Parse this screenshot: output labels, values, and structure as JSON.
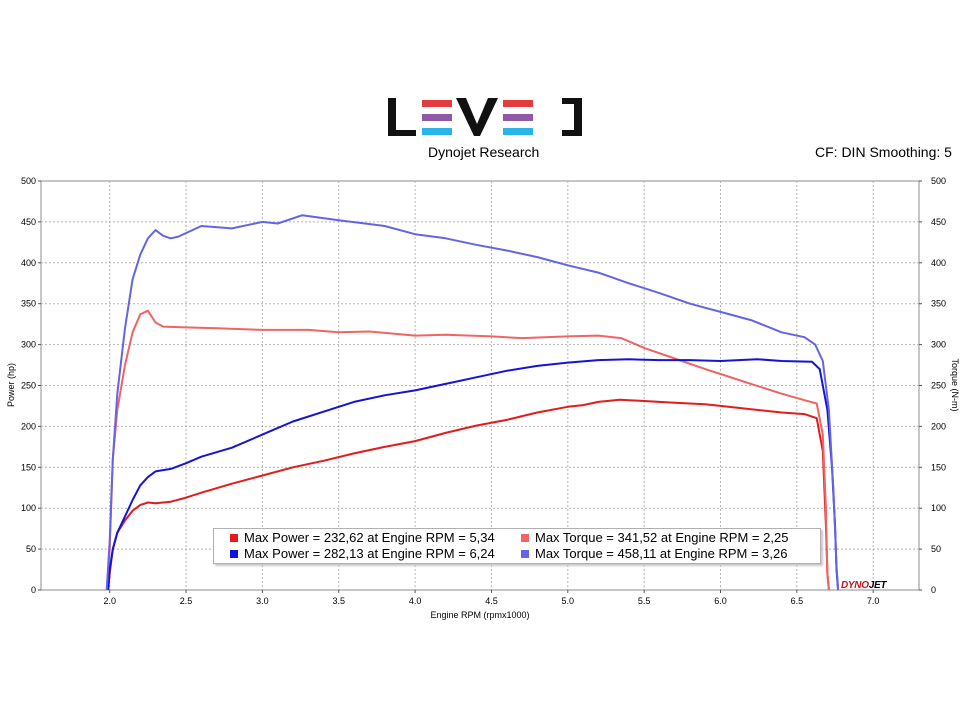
{
  "header": {
    "subtitle": "Dynojet Research",
    "settings": "CF: DIN Smoothing: 5",
    "logo_text": "LEVEL",
    "brand_mark": "DYNOJET"
  },
  "colors": {
    "power_stock": "#e31b1b",
    "torque_stock": "#f06464",
    "power_tuned": "#1414d8",
    "torque_tuned": "#6464e6",
    "logo_purple": "#8e5aa8",
    "logo_cyan": "#2ab4e8",
    "logo_red": "#e23c3c"
  },
  "legend": [
    {
      "label": "Max Power = 232,62 at Engine RPM = 5,34",
      "color": "#e31b1b"
    },
    {
      "label": "Max Torque = 341,52 at Engine RPM = 2,25",
      "color": "#f06464"
    },
    {
      "label": "Max Power = 282,13 at Engine RPM = 6,24",
      "color": "#1414d8"
    },
    {
      "label": "Max Torque = 458,11 at Engine RPM = 3,26",
      "color": "#6464e6"
    }
  ],
  "chart_data": {
    "type": "line",
    "xlabel": "Engine RPM (rpmx1000)",
    "ylabel": "Power (hp)",
    "y2label": "Torque (N-m)",
    "xlim": [
      1.55,
      7.3
    ],
    "ylim": [
      0,
      500
    ],
    "y2lim": [
      0,
      500
    ],
    "xticks": [
      "2.0",
      "2.5",
      "3.0",
      "3.5",
      "4.0",
      "4.5",
      "5.0",
      "5.5",
      "6.0",
      "6.5",
      "7.0"
    ],
    "yticks": [
      "0",
      "50",
      "100",
      "150",
      "200",
      "250",
      "300",
      "350",
      "400",
      "450",
      "500"
    ],
    "grid": true,
    "series": [
      {
        "name": "Max Power = 232,62 at Engine RPM = 5,34",
        "color": "#e31b1b",
        "axis": "left",
        "x": [
          1.99,
          2.0,
          2.02,
          2.05,
          2.1,
          2.15,
          2.2,
          2.25,
          2.3,
          2.4,
          2.5,
          2.6,
          2.8,
          3.0,
          3.2,
          3.4,
          3.6,
          3.8,
          4.0,
          4.2,
          4.4,
          4.6,
          4.8,
          5.0,
          5.1,
          5.2,
          5.34,
          5.5,
          5.7,
          5.9,
          6.0,
          6.2,
          6.4,
          6.55,
          6.63,
          6.67,
          6.69,
          6.7,
          6.71
        ],
        "y": [
          0,
          20,
          50,
          70,
          85,
          97,
          104,
          107,
          106,
          108,
          113,
          119,
          130,
          140,
          150,
          158,
          167,
          175,
          182,
          192,
          201,
          208,
          217,
          224,
          226,
          230,
          232.6,
          231,
          229,
          227,
          225,
          221,
          217,
          215,
          210,
          170,
          80,
          20,
          0
        ]
      },
      {
        "name": "Max Torque = 341,52 at Engine RPM = 2,25",
        "color": "#f06464",
        "axis": "right",
        "x": [
          1.98,
          2.0,
          2.02,
          2.05,
          2.1,
          2.15,
          2.2,
          2.25,
          2.3,
          2.35,
          2.5,
          2.7,
          3.0,
          3.3,
          3.5,
          3.7,
          4.0,
          4.2,
          4.5,
          4.7,
          5.0,
          5.2,
          5.35,
          5.5,
          5.7,
          5.9,
          6.0,
          6.2,
          6.4,
          6.55,
          6.63,
          6.67,
          6.69,
          6.7,
          6.71
        ],
        "y": [
          0,
          50,
          160,
          220,
          275,
          315,
          337,
          341.5,
          327,
          322,
          321,
          320,
          318,
          318,
          315,
          316,
          311,
          312,
          310,
          308,
          310,
          311,
          308,
          296,
          283,
          270,
          264,
          252,
          240,
          232,
          228,
          190,
          100,
          20,
          0
        ]
      },
      {
        "name": "Max Power = 282,13 at Engine RPM = 6,24",
        "color": "#1414d8",
        "axis": "left",
        "x": [
          1.99,
          2.0,
          2.02,
          2.05,
          2.1,
          2.15,
          2.2,
          2.25,
          2.3,
          2.4,
          2.5,
          2.6,
          2.8,
          3.0,
          3.2,
          3.4,
          3.6,
          3.8,
          4.0,
          4.2,
          4.4,
          4.6,
          4.8,
          5.0,
          5.2,
          5.4,
          5.6,
          5.8,
          6.0,
          6.24,
          6.4,
          6.6,
          6.65,
          6.7,
          6.73,
          6.75,
          6.76,
          6.77
        ],
        "y": [
          0,
          25,
          50,
          70,
          90,
          110,
          128,
          138,
          145,
          148,
          155,
          163,
          174,
          190,
          206,
          218,
          230,
          238,
          244,
          252,
          260,
          268,
          274,
          278,
          281,
          282,
          281,
          281,
          280,
          282.1,
          280,
          279,
          270,
          220,
          150,
          80,
          25,
          0
        ]
      },
      {
        "name": "Max Torque = 458,11 at Engine RPM = 3,26",
        "color": "#6464e6",
        "axis": "right",
        "x": [
          1.98,
          2.0,
          2.02,
          2.05,
          2.1,
          2.15,
          2.2,
          2.25,
          2.3,
          2.35,
          2.4,
          2.45,
          2.6,
          2.8,
          3.0,
          3.1,
          3.26,
          3.5,
          3.8,
          4.0,
          4.2,
          4.4,
          4.6,
          4.8,
          5.0,
          5.2,
          5.4,
          5.6,
          5.8,
          6.0,
          6.2,
          6.4,
          6.55,
          6.62,
          6.67,
          6.71,
          6.74,
          6.76,
          6.77
        ],
        "y": [
          0,
          60,
          160,
          240,
          320,
          380,
          410,
          430,
          440,
          433,
          430,
          432,
          445,
          442,
          450,
          448,
          458.1,
          452,
          445,
          435,
          430,
          422,
          415,
          407,
          397,
          388,
          375,
          363,
          350,
          340,
          330,
          315,
          309,
          300,
          280,
          220,
          120,
          30,
          0
        ]
      }
    ]
  }
}
